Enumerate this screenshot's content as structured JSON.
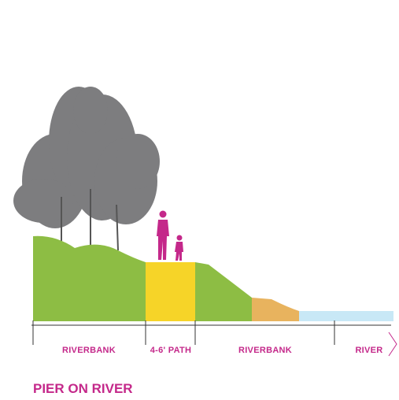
{
  "title": "PIER ON RIVER",
  "sections": [
    {
      "label": "RIVERBANK"
    },
    {
      "label": "4-6' PATH"
    },
    {
      "label": "RIVERBANK"
    },
    {
      "label": "RIVER"
    }
  ]
}
